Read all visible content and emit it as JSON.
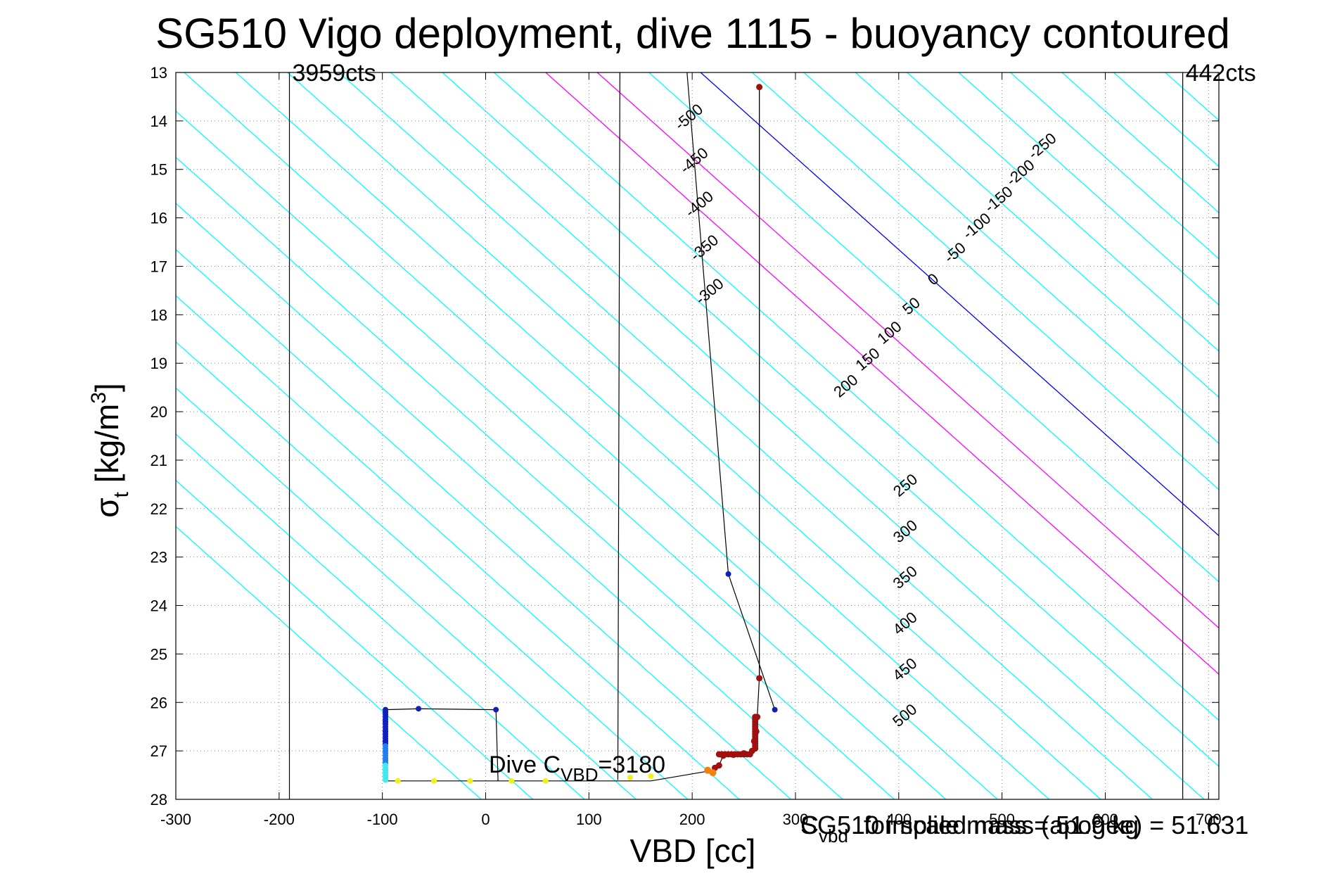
{
  "chart_data": {
    "type": "scatter",
    "title": "SG510 Vigo deployment, dive 1115 - buoyancy contoured",
    "xlabel": "VBD [cc]",
    "ylabel": "σ",
    "ylabel_sub": "t",
    "ylabel_unit": " [kg/m",
    "ylabel_sup": "3",
    "ylabel_close": "]",
    "xlim": [
      -300,
      710
    ],
    "ylim": [
      13,
      28
    ],
    "y_reversed": true,
    "grid": true,
    "x_ticks": [
      "-300",
      "-200",
      "-100",
      "0",
      "100",
      "200",
      "300",
      "400",
      "500",
      "600",
      "700"
    ],
    "y_ticks": [
      "13",
      "14",
      "15",
      "16",
      "17",
      "18",
      "19",
      "20",
      "21",
      "22",
      "23",
      "24",
      "25",
      "26",
      "27",
      "28"
    ],
    "vertical_markers": [
      {
        "x": -190,
        "label": "3959cts"
      },
      {
        "x": 675,
        "label": "442cts"
      }
    ],
    "vbd_limit_line_x": 265,
    "buoyancy_contours": {
      "values": [
        -500,
        -450,
        -400,
        -350,
        -300,
        -250,
        -200,
        -150,
        -100,
        -50,
        0,
        50,
        100,
        150,
        200,
        250,
        300,
        350,
        400,
        450,
        500
      ],
      "cc_per_sigma": 52.5,
      "zero_at": [
        300,
        14.75
      ],
      "colors": {
        "negative": "#00ffff",
        "zero": "#0000ff",
        "positive_small": "#00ffff",
        "magenta": "#ff00ff"
      },
      "labels_upper": [
        "-250",
        "-200",
        "-150",
        "-100",
        "-50",
        "0",
        "50",
        "100",
        "150",
        "200"
      ],
      "labels_left": [
        "-500",
        "-450",
        "-400",
        "-350",
        "-300"
      ],
      "labels_middle": [
        "-250",
        "-200",
        "-150",
        "-100",
        "-50",
        "0",
        "50",
        "100",
        "150",
        "200"
      ],
      "labels_right": [
        "250",
        "300",
        "350",
        "400",
        "450",
        "500"
      ],
      "labels_steep": [
        "-500",
        "-450",
        "-400",
        "-350",
        "-300"
      ]
    },
    "profile_descent": [
      {
        "x": -97,
        "y": 26.2
      },
      {
        "x": -97,
        "y": 26.4
      },
      {
        "x": -97,
        "y": 26.6
      },
      {
        "x": -97,
        "y": 26.8
      },
      {
        "x": -97,
        "y": 27.0
      },
      {
        "x": -97,
        "y": 27.2
      },
      {
        "x": -97,
        "y": 27.4
      },
      {
        "x": -97,
        "y": 27.6
      },
      {
        "x": -85,
        "y": 27.62
      },
      {
        "x": -50,
        "y": 27.62
      },
      {
        "x": -15,
        "y": 27.62
      },
      {
        "x": 25,
        "y": 27.62
      },
      {
        "x": 58,
        "y": 27.62
      },
      {
        "x": 140,
        "y": 27.55
      },
      {
        "x": 160,
        "y": 27.52
      }
    ],
    "profile_points_dark": [
      {
        "x": -97,
        "y": 26.15
      },
      {
        "x": -65,
        "y": 26.13
      },
      {
        "x": 10,
        "y": 26.15
      },
      {
        "x": 235,
        "y": 23.35
      },
      {
        "x": 280,
        "y": 26.15
      }
    ],
    "profile_points_red": [
      {
        "x": 265,
        "y": 13.3
      },
      {
        "x": 265,
        "y": 25.5
      },
      {
        "x": 263,
        "y": 26.3
      },
      {
        "x": 262,
        "y": 26.6
      },
      {
        "x": 260,
        "y": 26.8
      },
      {
        "x": 258,
        "y": 27.0
      },
      {
        "x": 250,
        "y": 27.05
      },
      {
        "x": 240,
        "y": 27.08
      },
      {
        "x": 230,
        "y": 27.1
      },
      {
        "x": 226,
        "y": 27.3
      },
      {
        "x": 222,
        "y": 27.35
      }
    ],
    "profile_points_orange": [
      {
        "x": 215,
        "y": 27.4
      },
      {
        "x": 220,
        "y": 27.45
      }
    ],
    "steep_line": [
      {
        "x": 130,
        "y": 13
      },
      {
        "x": 128,
        "y": 27.6
      }
    ],
    "steep_line2": [
      {
        "x": 195,
        "y": 13
      },
      {
        "x": 235,
        "y": 23.35
      },
      {
        "x": 280,
        "y": 26.15
      }
    ],
    "dive_text": {
      "prefix": "Dive C",
      "sub": "VBD",
      "suffix": "=3180"
    },
    "footer_text_a": "SG510 implied mass (apogee) = 51.631",
    "footer_text_b_sub": "vbd",
    "footer_text_b": "C",
    "footer_text_c": "for scale mass = 51.9 kg"
  }
}
